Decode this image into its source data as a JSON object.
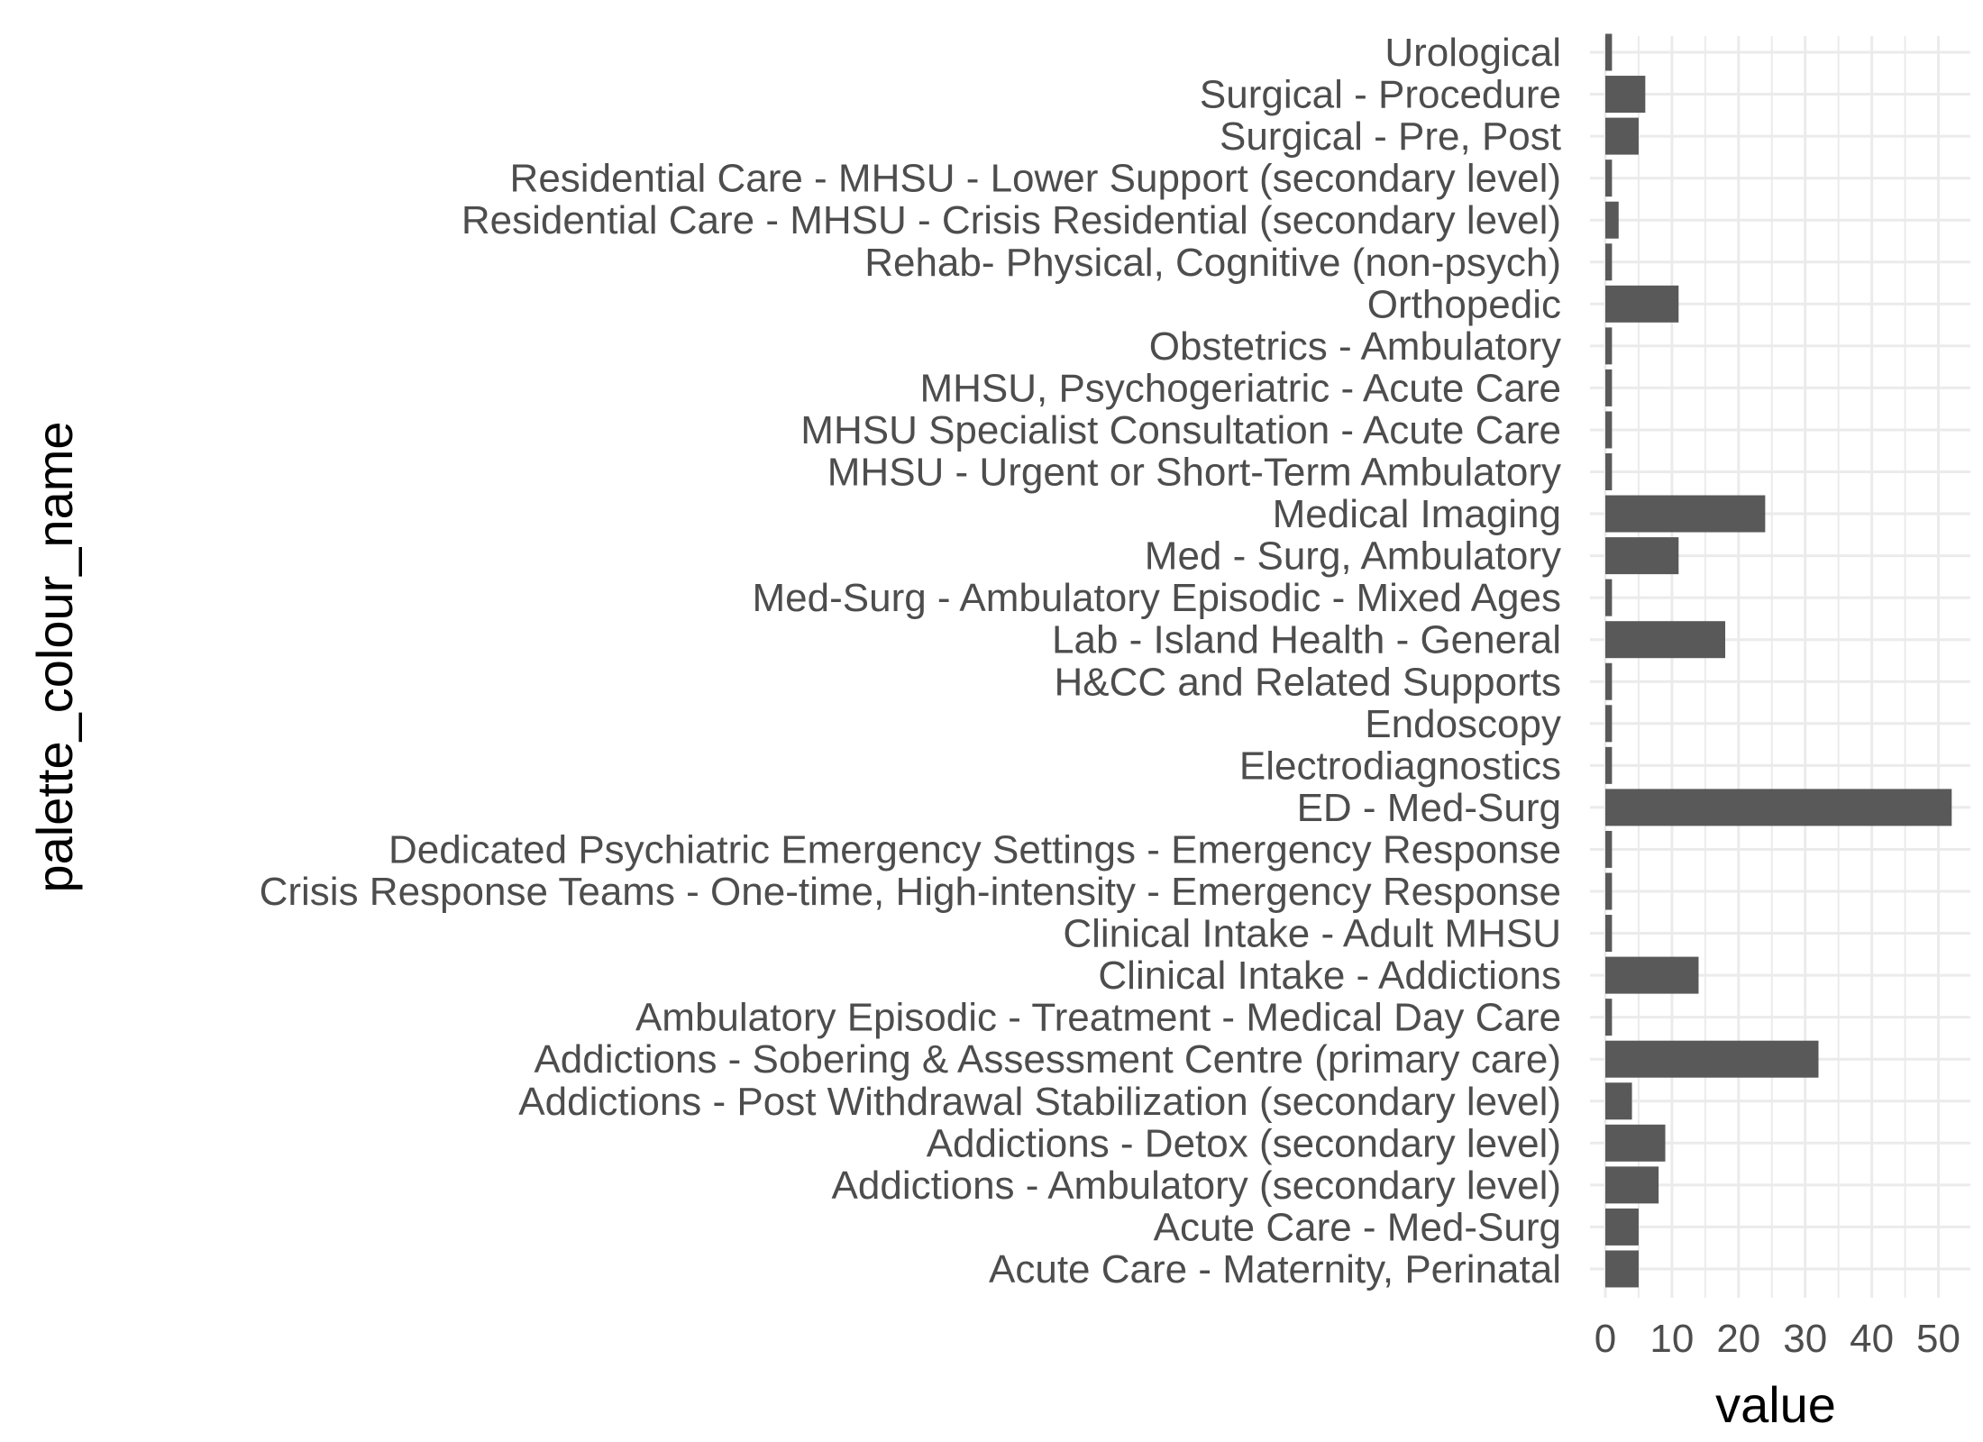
{
  "chart_data": {
    "type": "bar",
    "orientation": "horizontal",
    "xlabel": "value",
    "ylabel": "palette_colour_name",
    "xlim": [
      0,
      53
    ],
    "x_ticks": [
      0,
      10,
      20,
      30,
      40,
      50
    ],
    "grid": true,
    "bar_color": "#595959",
    "grid_color": "#ebebeb",
    "categories": [
      "Urological",
      "Surgical - Procedure",
      "Surgical - Pre, Post",
      "Residential Care - MHSU - Lower Support (secondary level)",
      "Residential Care - MHSU - Crisis Residential (secondary level)",
      "Rehab- Physical, Cognitive (non-psych)",
      "Orthopedic",
      "Obstetrics - Ambulatory",
      "MHSU, Psychogeriatric - Acute Care",
      "MHSU Specialist Consultation - Acute Care",
      "MHSU - Urgent  or Short-Term Ambulatory",
      "Medical Imaging",
      "Med - Surg, Ambulatory",
      "Med-Surg - Ambulatory Episodic - Mixed Ages",
      "Lab - Island Health - General",
      "H&CC and Related Supports",
      "Endoscopy",
      "Electrodiagnostics",
      "ED - Med-Surg",
      "Dedicated Psychiatric Emergency Settings - Emergency Response",
      "Crisis Response Teams - One-time, High-intensity - Emergency Response",
      "Clinical Intake - Adult MHSU",
      "Clinical Intake - Addictions",
      "Ambulatory Episodic - Treatment - Medical Day Care",
      "Addictions - Sobering & Assessment Centre (primary care)",
      "Addictions - Post Withdrawal Stabilization (secondary level)",
      "Addictions - Detox (secondary level)",
      "Addictions - Ambulatory (secondary level)",
      "Acute Care - Med-Surg",
      "Acute Care - Maternity, Perinatal"
    ],
    "values": [
      1,
      6,
      5,
      1,
      2,
      1,
      11,
      1,
      1,
      1,
      1,
      24,
      11,
      1,
      18,
      1,
      1,
      1,
      52,
      1,
      1,
      1,
      14,
      1,
      32,
      4,
      9,
      8,
      5,
      5
    ]
  }
}
